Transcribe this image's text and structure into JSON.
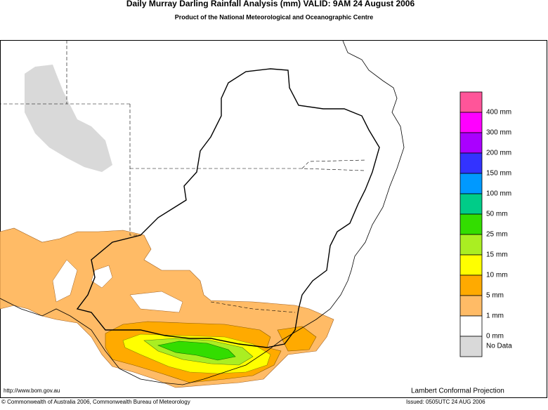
{
  "header": {
    "title": "Daily Murray Darling Rainfall Analysis (mm)  VALID: 9AM 24 August 2006",
    "subtitle": "Product of the National Meteorological and Oceanographic Centre"
  },
  "legend": {
    "colors": [
      "#ff5599",
      "#ff00ff",
      "#aa00ff",
      "#3333ff",
      "#0099ff",
      "#00cc88",
      "#33dd00",
      "#aaee22",
      "#ffff00",
      "#ffaa00",
      "#ffbb66",
      "#ffffff",
      "#d9d9d9"
    ],
    "labels": [
      "400 mm",
      "300 mm",
      "200 mm",
      "150 mm",
      "100 mm",
      "50 mm",
      "25 mm",
      "15 mm",
      "10 mm",
      "5 mm",
      "1 mm",
      "0 mm",
      "No Data"
    ]
  },
  "footer": {
    "url": "http://www.bom.gov.au",
    "projection": "Lambert Conformal Projection",
    "copyright": "© Commonwealth of Australia 2006, Commonwealth Bureau of Meteorology",
    "issued": "Issued: 0505UTC 24 AUG 2006"
  }
}
